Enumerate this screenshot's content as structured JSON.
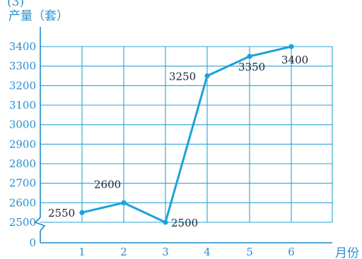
{
  "header_fragment": "(3)",
  "chart_data": {
    "type": "line",
    "title": "",
    "ylabel": "产量（套）",
    "xlabel": "月份",
    "x": [
      1,
      2,
      3,
      4,
      5,
      6
    ],
    "x_ticks": [
      "1",
      "2",
      "3",
      "4",
      "5",
      "6"
    ],
    "values": [
      2550,
      2600,
      2500,
      3250,
      3350,
      3400
    ],
    "data_labels": [
      "2550",
      "2600",
      "2500",
      "3250",
      "3350",
      "3400"
    ],
    "y_ticks": [
      "0",
      "2500",
      "2600",
      "2700",
      "2800",
      "2900",
      "3000",
      "3100",
      "3200",
      "3300",
      "3400"
    ],
    "ylim": [
      2500,
      3400
    ],
    "y_axis_break": true,
    "grid": true,
    "colors": {
      "line": "#1aa3d9",
      "grid": "#2aa3d6",
      "axis": "#1f8ac6",
      "text": "#2a8fcf",
      "data_label": "#1a2530"
    }
  }
}
